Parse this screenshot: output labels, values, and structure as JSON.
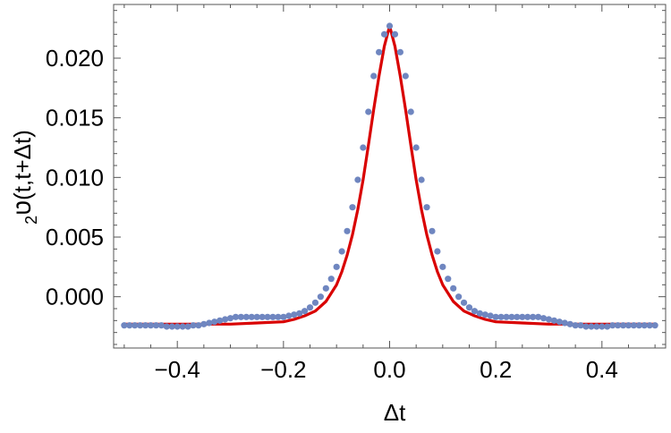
{
  "chart_data": {
    "type": "scatter",
    "title": "",
    "xlabel": "Δt",
    "ylabel": "ט₂(t,t+Δt)",
    "ylabel_parts": {
      "symbol": "ט",
      "subscript": "2",
      "args": "(t,t+Δt)"
    },
    "xlim": [
      -0.52,
      0.52
    ],
    "ylim": [
      -0.0043,
      0.0245
    ],
    "x_ticks": [
      -0.4,
      -0.2,
      0.0,
      0.2,
      0.4
    ],
    "x_tick_labels": [
      "−0.4",
      "−0.2",
      "0.0",
      "0.2",
      "0.4"
    ],
    "y_ticks": [
      0.0,
      0.005,
      0.01,
      0.015,
      0.02
    ],
    "y_tick_labels": [
      "0.000",
      "0.005",
      "0.010",
      "0.015",
      "0.020"
    ],
    "grid": false,
    "series": [
      {
        "kind": "points",
        "color": "#6f86c0",
        "x": [
          -0.5,
          -0.49,
          -0.48,
          -0.47,
          -0.46,
          -0.45,
          -0.44,
          -0.43,
          -0.42,
          -0.41,
          -0.4,
          -0.39,
          -0.38,
          -0.37,
          -0.36,
          -0.35,
          -0.34,
          -0.33,
          -0.32,
          -0.31,
          -0.3,
          -0.29,
          -0.28,
          -0.27,
          -0.26,
          -0.25,
          -0.24,
          -0.23,
          -0.22,
          -0.21,
          -0.2,
          -0.19,
          -0.18,
          -0.17,
          -0.16,
          -0.15,
          -0.14,
          -0.13,
          -0.12,
          -0.11,
          -0.1,
          -0.09,
          -0.08,
          -0.07,
          -0.06,
          -0.05,
          -0.04,
          -0.03,
          -0.02,
          -0.01,
          0.0,
          0.01,
          0.02,
          0.03,
          0.04,
          0.05,
          0.06,
          0.07,
          0.08,
          0.09,
          0.1,
          0.11,
          0.12,
          0.13,
          0.14,
          0.15,
          0.16,
          0.17,
          0.18,
          0.19,
          0.2,
          0.21,
          0.22,
          0.23,
          0.24,
          0.25,
          0.26,
          0.27,
          0.28,
          0.29,
          0.3,
          0.31,
          0.32,
          0.33,
          0.34,
          0.35,
          0.36,
          0.37,
          0.38,
          0.39,
          0.4,
          0.41,
          0.42,
          0.43,
          0.44,
          0.45,
          0.46,
          0.47,
          0.48,
          0.49,
          0.5
        ],
        "y": [
          -0.0024,
          -0.0024,
          -0.0024,
          -0.0024,
          -0.0024,
          -0.0024,
          -0.0024,
          -0.0024,
          -0.0025,
          -0.0025,
          -0.0025,
          -0.0025,
          -0.0025,
          -0.0024,
          -0.0024,
          -0.0023,
          -0.0022,
          -0.0021,
          -0.002,
          -0.0019,
          -0.0018,
          -0.0017,
          -0.0017,
          -0.0017,
          -0.0017,
          -0.0017,
          -0.0017,
          -0.0017,
          -0.0017,
          -0.0017,
          -0.0017,
          -0.0016,
          -0.0015,
          -0.0014,
          -0.0012,
          -0.0009,
          -0.0005,
          0.0,
          0.0007,
          0.0015,
          0.0025,
          0.0038,
          0.0055,
          0.0075,
          0.0098,
          0.0125,
          0.0155,
          0.0185,
          0.0205,
          0.022,
          0.0227,
          0.022,
          0.0205,
          0.0185,
          0.0155,
          0.0125,
          0.0098,
          0.0075,
          0.0055,
          0.0038,
          0.0025,
          0.0015,
          0.0007,
          0.0,
          -0.0005,
          -0.0009,
          -0.0012,
          -0.0014,
          -0.0015,
          -0.0016,
          -0.0017,
          -0.0017,
          -0.0017,
          -0.0017,
          -0.0017,
          -0.0017,
          -0.0017,
          -0.0017,
          -0.0017,
          -0.0018,
          -0.0019,
          -0.002,
          -0.0021,
          -0.0022,
          -0.0023,
          -0.0024,
          -0.0024,
          -0.0025,
          -0.0025,
          -0.0025,
          -0.0025,
          -0.0025,
          -0.0024,
          -0.0024,
          -0.0024,
          -0.0024,
          -0.0024,
          -0.0024,
          -0.0024,
          -0.0024,
          -0.0024
        ]
      },
      {
        "kind": "line",
        "color": "#d90000",
        "x": [
          -0.5,
          -0.45,
          -0.4,
          -0.35,
          -0.3,
          -0.25,
          -0.2,
          -0.18,
          -0.16,
          -0.14,
          -0.12,
          -0.1,
          -0.09,
          -0.08,
          -0.07,
          -0.06,
          -0.05,
          -0.04,
          -0.03,
          -0.02,
          -0.01,
          0.0,
          0.01,
          0.02,
          0.03,
          0.04,
          0.05,
          0.06,
          0.07,
          0.08,
          0.09,
          0.1,
          0.12,
          0.14,
          0.16,
          0.18,
          0.2,
          0.25,
          0.3,
          0.35,
          0.4,
          0.45,
          0.5
        ],
        "y": [
          -0.0023,
          -0.0023,
          -0.0023,
          -0.0023,
          -0.0023,
          -0.0022,
          -0.0021,
          -0.0019,
          -0.0016,
          -0.0012,
          -0.0004,
          0.001,
          0.0021,
          0.0035,
          0.0052,
          0.0073,
          0.0098,
          0.0127,
          0.0157,
          0.0185,
          0.021,
          0.0227,
          0.021,
          0.0185,
          0.0157,
          0.0127,
          0.0098,
          0.0073,
          0.0052,
          0.0035,
          0.0021,
          0.001,
          -0.0004,
          -0.0012,
          -0.0016,
          -0.0019,
          -0.0021,
          -0.0022,
          -0.0023,
          -0.0023,
          -0.0023,
          -0.0023,
          -0.0023
        ]
      }
    ]
  }
}
